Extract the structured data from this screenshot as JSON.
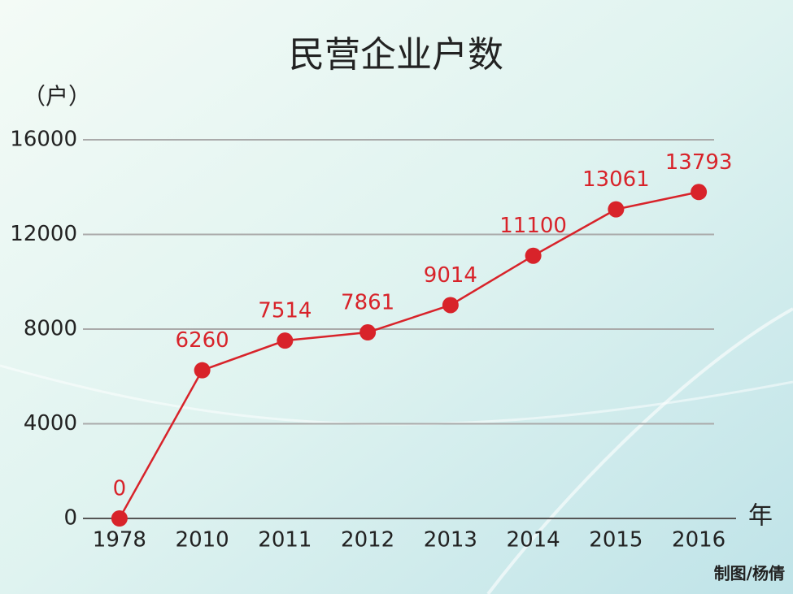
{
  "chart_data": {
    "type": "line",
    "title": "民营企业户数",
    "y_label": "（户）",
    "x_label": "年",
    "credit": "制图/杨倩",
    "categories": [
      "1978",
      "2010",
      "2011",
      "2012",
      "2013",
      "2014",
      "2015",
      "2016"
    ],
    "values": [
      0,
      6260,
      7514,
      7861,
      9014,
      11100,
      13061,
      13793
    ],
    "color": "#d8232a",
    "ylim": [
      0,
      16000
    ],
    "yticks": [
      0,
      4000,
      8000,
      12000,
      16000
    ],
    "grid": true
  }
}
